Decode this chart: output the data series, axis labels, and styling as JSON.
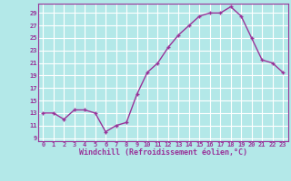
{
  "x": [
    0,
    1,
    2,
    3,
    4,
    5,
    6,
    7,
    8,
    9,
    10,
    11,
    12,
    13,
    14,
    15,
    16,
    17,
    18,
    19,
    20,
    21,
    22,
    23
  ],
  "y": [
    13,
    13,
    12,
    13.5,
    13.5,
    13,
    10,
    11,
    11.5,
    16,
    19.5,
    21,
    23.5,
    25.5,
    27,
    28.5,
    29,
    29,
    30,
    28.5,
    25,
    21.5,
    21,
    19.5
  ],
  "line_color": "#993399",
  "marker": "+",
  "bg_color": "#b3e8e8",
  "grid_color": "#ffffff",
  "xlabel": "Windchill (Refroidissement éolien,°C)",
  "xlabel_color": "#993399",
  "ylim": [
    8.5,
    30.5
  ],
  "xlim": [
    -0.5,
    23.5
  ],
  "yticks": [
    9,
    11,
    13,
    15,
    17,
    19,
    21,
    23,
    25,
    27,
    29
  ],
  "xticks": [
    0,
    1,
    2,
    3,
    4,
    5,
    6,
    7,
    8,
    9,
    10,
    11,
    12,
    13,
    14,
    15,
    16,
    17,
    18,
    19,
    20,
    21,
    22,
    23
  ],
  "tick_color": "#993399",
  "tick_fontsize": 5.0,
  "xlabel_fontsize": 6.0,
  "line_width": 1.0,
  "marker_size": 3.5,
  "spine_color": "#993399"
}
